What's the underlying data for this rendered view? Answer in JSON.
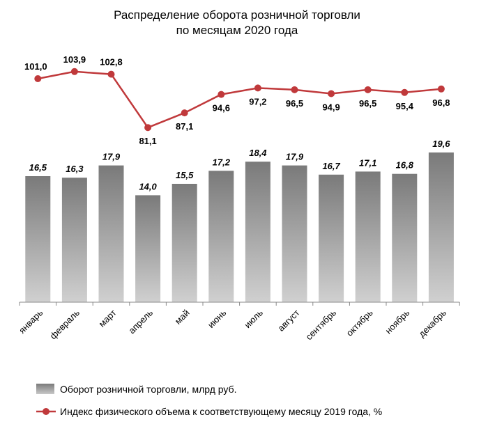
{
  "chart_data": {
    "type": "bar",
    "title_lines": [
      "Распределение оборота розничной торговли",
      "по месяцам 2020 года"
    ],
    "categories": [
      "январь",
      "февраль",
      "март",
      "апрель",
      "май",
      "июнь",
      "июль",
      "август",
      "сентябрь",
      "октябрь",
      "ноябрь",
      "декабрь"
    ],
    "series": [
      {
        "name": "Оборот розничной торговли, млрд руб.",
        "type": "bar",
        "values": [
          16.5,
          16.3,
          17.9,
          14.0,
          15.5,
          17.2,
          18.4,
          17.9,
          16.7,
          17.1,
          16.8,
          19.6
        ],
        "labels": [
          "16,5",
          "16,3",
          "17,9",
          "14,0",
          "15,5",
          "17,2",
          "18,4",
          "17,9",
          "16,7",
          "17,1",
          "16,8",
          "19,6"
        ],
        "color": "#8c8c8c"
      },
      {
        "name": "Индекс физического объема к соответствующему месяцу 2019 года, %",
        "type": "line",
        "values": [
          101.0,
          103.9,
          102.8,
          81.1,
          87.1,
          94.6,
          97.2,
          96.5,
          94.9,
          96.5,
          95.4,
          96.8
        ],
        "labels": [
          "101,0",
          "103,9",
          "102,8",
          "81,1",
          "87,1",
          "94,6",
          "97,2",
          "96,5",
          "94,9",
          "96,5",
          "95,4",
          "96,8"
        ],
        "color": "#c0393b"
      }
    ],
    "legend_position": "bottom-left",
    "grid": false
  }
}
